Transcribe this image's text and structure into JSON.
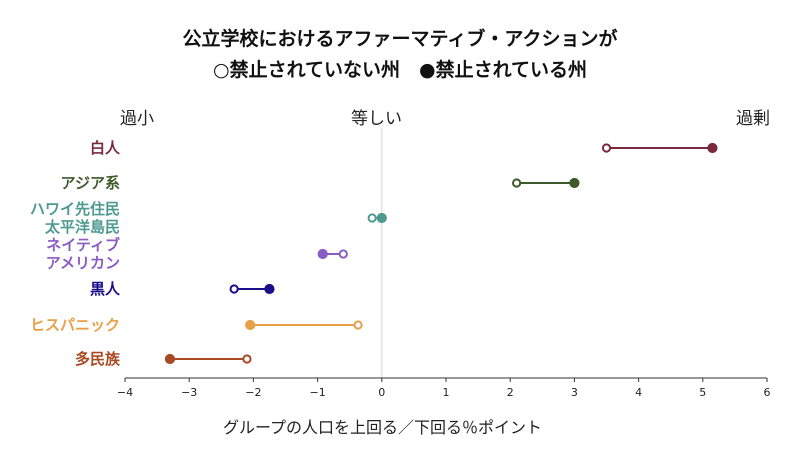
{
  "title_line1": "公立学校におけるアファーマティブ・アクションが",
  "title_line2": "○禁止されていない州　●禁止されている州",
  "scale_labels": {
    "left": "過小",
    "center": "等しい",
    "right": "過剰"
  },
  "chart_data": {
    "type": "dumbbell",
    "xlabel": "グループの人口を上回る／下回る％ポイント",
    "xlim": [
      -4,
      6
    ],
    "xticks": [
      "−4",
      "−3",
      "−2",
      "−1",
      "0",
      "1",
      "2",
      "3",
      "4",
      "5",
      "6"
    ],
    "grid": "vertical line at 0",
    "categories": [
      {
        "label": [
          "白人"
        ],
        "not_banned": 3.5,
        "banned": 5.15,
        "color": "#7a2a3c"
      },
      {
        "label": [
          "アジア系"
        ],
        "not_banned": 2.1,
        "banned": 3.0,
        "color": "#3d5a2a"
      },
      {
        "label": [
          "ハワイ先住民",
          "太平洋島民"
        ],
        "not_banned": -0.15,
        "banned": 0.0,
        "color": "#4e9a92"
      },
      {
        "label": [
          "ネイティブ",
          "アメリカン"
        ],
        "not_banned": -0.6,
        "banned": -0.92,
        "color": "#8a5cc4"
      },
      {
        "label": [
          "黒人"
        ],
        "not_banned": -2.3,
        "banned": -1.75,
        "color": "#1a0e8c"
      },
      {
        "label": [
          "ヒスパニック"
        ],
        "not_banned": -0.37,
        "banned": -2.05,
        "color": "#e8a048"
      },
      {
        "label": [
          "多民族"
        ],
        "not_banned": -2.1,
        "banned": -3.3,
        "color": "#a84a24"
      }
    ]
  }
}
